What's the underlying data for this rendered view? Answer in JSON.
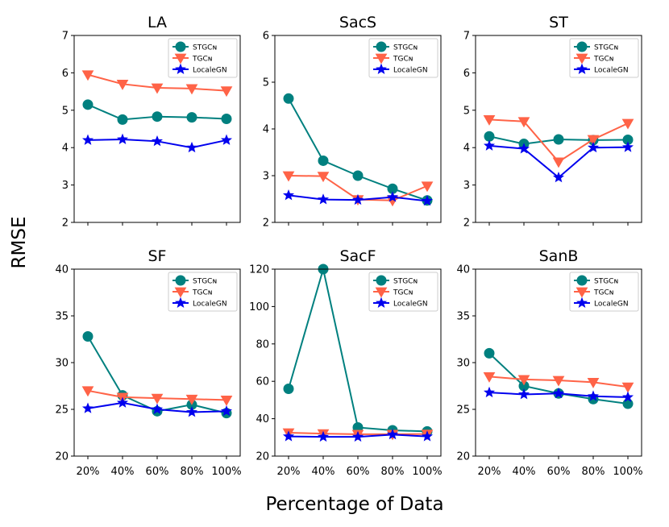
{
  "figure": {
    "ylabel": "RMSE",
    "xlabel": "Percentage of Data"
  },
  "series_styles": [
    {
      "name": "STGCN",
      "label": "STGCɴ",
      "color": "#00807f",
      "marker": "circle"
    },
    {
      "name": "TGCN",
      "label": "TGCɴ",
      "color": "#ff6347",
      "marker": "triangle-down"
    },
    {
      "name": "LocaleGN",
      "label": "LocaleGN",
      "color": "#0000ee",
      "marker": "star"
    }
  ],
  "chart_data": [
    {
      "type": "line",
      "title": "LA",
      "categories": [
        "20%",
        "40%",
        "60%",
        "80%",
        "100%"
      ],
      "ylim": [
        2,
        7
      ],
      "yticks": [
        2,
        3,
        4,
        5,
        6,
        7
      ],
      "series": [
        {
          "name": "STGCN",
          "values": [
            5.15,
            4.75,
            4.83,
            4.81,
            4.77
          ]
        },
        {
          "name": "TGCN",
          "values": [
            5.95,
            5.7,
            5.6,
            5.58,
            5.52
          ]
        },
        {
          "name": "LocaleGN",
          "values": [
            4.2,
            4.22,
            4.17,
            4.0,
            4.2
          ]
        }
      ]
    },
    {
      "type": "line",
      "title": "SacS",
      "categories": [
        "20%",
        "40%",
        "60%",
        "80%",
        "100%"
      ],
      "ylim": [
        2,
        6
      ],
      "yticks": [
        2,
        3,
        4,
        5,
        6
      ],
      "series": [
        {
          "name": "STGCN",
          "values": [
            4.65,
            3.32,
            3.0,
            2.72,
            2.47
          ]
        },
        {
          "name": "TGCN",
          "values": [
            3.0,
            2.99,
            2.49,
            2.47,
            2.78
          ]
        },
        {
          "name": "LocaleGN",
          "values": [
            2.58,
            2.49,
            2.48,
            2.54,
            2.46
          ]
        }
      ]
    },
    {
      "type": "line",
      "title": "ST",
      "categories": [
        "20%",
        "40%",
        "60%",
        "80%",
        "100%"
      ],
      "ylim": [
        2,
        7
      ],
      "yticks": [
        2,
        3,
        4,
        5,
        6,
        7
      ],
      "series": [
        {
          "name": "STGCN",
          "values": [
            4.3,
            4.1,
            4.22,
            4.2,
            4.21
          ]
        },
        {
          "name": "TGCN",
          "values": [
            4.75,
            4.7,
            3.62,
            4.22,
            4.65
          ]
        },
        {
          "name": "LocaleGN",
          "values": [
            4.05,
            3.97,
            3.2,
            4.0,
            4.01
          ]
        }
      ]
    },
    {
      "type": "line",
      "title": "SF",
      "categories": [
        "20%",
        "40%",
        "60%",
        "80%",
        "100%"
      ],
      "ylim": [
        20,
        40
      ],
      "yticks": [
        20,
        25,
        30,
        35,
        40
      ],
      "series": [
        {
          "name": "STGCN",
          "values": [
            32.8,
            26.5,
            24.8,
            25.5,
            24.6
          ]
        },
        {
          "name": "TGCN",
          "values": [
            27.0,
            26.3,
            26.2,
            26.1,
            26.0
          ]
        },
        {
          "name": "LocaleGN",
          "values": [
            25.1,
            25.7,
            25.0,
            24.7,
            24.8
          ]
        }
      ]
    },
    {
      "type": "line",
      "title": "SacF",
      "categories": [
        "20%",
        "40%",
        "60%",
        "80%",
        "100%"
      ],
      "ylim": [
        20,
        120
      ],
      "yticks": [
        20,
        40,
        60,
        80,
        100,
        120
      ],
      "series": [
        {
          "name": "STGCN",
          "values": [
            56.0,
            120.0,
            35.3,
            33.8,
            33.2
          ]
        },
        {
          "name": "TGCN",
          "values": [
            32.5,
            32.0,
            31.7,
            31.7,
            31.8
          ]
        },
        {
          "name": "LocaleGN",
          "values": [
            30.5,
            30.3,
            30.3,
            31.5,
            30.5
          ]
        }
      ]
    },
    {
      "type": "line",
      "title": "SanB",
      "categories": [
        "20%",
        "40%",
        "60%",
        "80%",
        "100%"
      ],
      "ylim": [
        20,
        40
      ],
      "yticks": [
        20,
        25,
        30,
        35,
        40
      ],
      "series": [
        {
          "name": "STGCN",
          "values": [
            31.0,
            27.5,
            26.7,
            26.1,
            25.6
          ]
        },
        {
          "name": "TGCN",
          "values": [
            28.5,
            28.2,
            28.1,
            27.9,
            27.4
          ]
        },
        {
          "name": "LocaleGN",
          "values": [
            26.8,
            26.6,
            26.7,
            26.4,
            26.3
          ]
        }
      ]
    }
  ]
}
